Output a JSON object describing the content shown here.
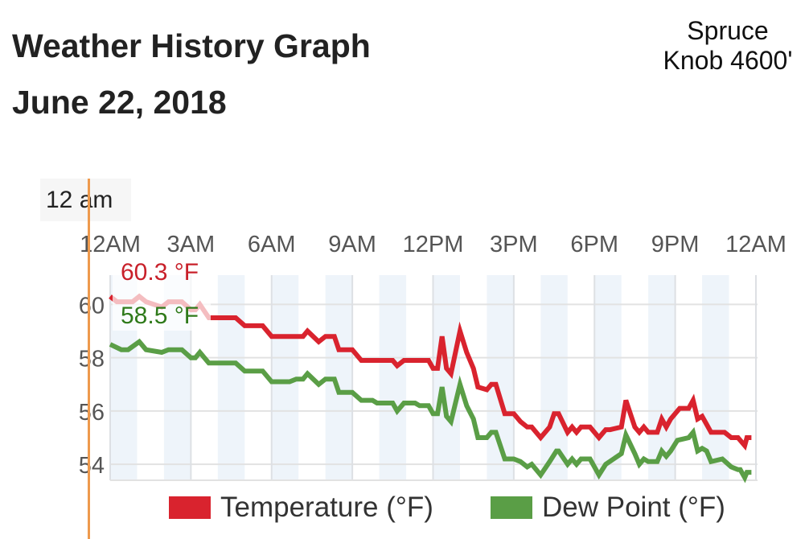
{
  "header": {
    "title_line1": "Weather History Graph",
    "title_line2": "June 22, 2018",
    "station_line1": "Spruce",
    "station_line2": "Knob 4600'"
  },
  "tooltip": {
    "time": "12 am",
    "temperature": "60.3 °F",
    "dew_point": "58.5 °F"
  },
  "colors": {
    "temperature": "#d9232e",
    "dew_point": "#5a9e46",
    "cursor": "#ee9a4d",
    "band": "#eef4fa"
  },
  "chart_data": {
    "type": "line",
    "title": "",
    "xlabel": "",
    "ylabel": "",
    "x_ticks": [
      "12AM",
      "3AM",
      "6AM",
      "9AM",
      "12PM",
      "3PM",
      "6PM",
      "9PM",
      "12AM"
    ],
    "y_ticks": [
      54,
      56,
      58,
      60
    ],
    "ylim": [
      53.4,
      61.1
    ],
    "grid": true,
    "legend_position": "bottom",
    "series": [
      {
        "name": "Temperature (°F)",
        "color": "#d9232e",
        "points": [
          [
            "00:00",
            60.3
          ],
          [
            "00:15",
            60.1
          ],
          [
            "00:50",
            60.1
          ],
          [
            "01:05",
            60.3
          ],
          [
            "01:20",
            60.1
          ],
          [
            "01:55",
            59.9
          ],
          [
            "02:10",
            60.1
          ],
          [
            "02:40",
            60.1
          ],
          [
            "03:00",
            59.8
          ],
          [
            "03:10",
            59.8
          ],
          [
            "03:20",
            60.0
          ],
          [
            "03:40",
            59.5
          ],
          [
            "04:40",
            59.5
          ],
          [
            "05:00",
            59.2
          ],
          [
            "05:40",
            59.2
          ],
          [
            "06:00",
            58.8
          ],
          [
            "07:10",
            58.8
          ],
          [
            "07:20",
            59.0
          ],
          [
            "07:45",
            58.6
          ],
          [
            "08:00",
            58.8
          ],
          [
            "08:20",
            58.8
          ],
          [
            "08:30",
            58.3
          ],
          [
            "09:00",
            58.3
          ],
          [
            "09:20",
            57.9
          ],
          [
            "10:30",
            57.9
          ],
          [
            "10:40",
            57.7
          ],
          [
            "10:55",
            57.9
          ],
          [
            "11:50",
            57.9
          ],
          [
            "12:00",
            57.6
          ],
          [
            "12:10",
            57.6
          ],
          [
            "12:20",
            58.8
          ],
          [
            "12:30",
            57.6
          ],
          [
            "12:40",
            57.4
          ],
          [
            "13:00",
            59.0
          ],
          [
            "13:15",
            58.2
          ],
          [
            "13:30",
            57.6
          ],
          [
            "13:40",
            56.9
          ],
          [
            "14:00",
            56.8
          ],
          [
            "14:10",
            57.0
          ],
          [
            "14:20",
            57.0
          ],
          [
            "14:40",
            55.9
          ],
          [
            "15:00",
            55.9
          ],
          [
            "15:15",
            55.6
          ],
          [
            "15:30",
            55.4
          ],
          [
            "15:40",
            55.4
          ],
          [
            "16:00",
            55.0
          ],
          [
            "16:20",
            55.4
          ],
          [
            "16:30",
            55.9
          ],
          [
            "16:40",
            55.9
          ],
          [
            "17:00",
            55.2
          ],
          [
            "17:10",
            55.4
          ],
          [
            "17:20",
            55.2
          ],
          [
            "17:30",
            55.4
          ],
          [
            "17:50",
            55.4
          ],
          [
            "18:10",
            55.0
          ],
          [
            "18:25",
            55.3
          ],
          [
            "18:35",
            55.3
          ],
          [
            "19:00",
            55.4
          ],
          [
            "19:10",
            56.4
          ],
          [
            "19:30",
            55.4
          ],
          [
            "19:40",
            55.2
          ],
          [
            "19:50",
            55.4
          ],
          [
            "20:00",
            55.2
          ],
          [
            "20:20",
            55.2
          ],
          [
            "20:30",
            55.7
          ],
          [
            "20:40",
            55.4
          ],
          [
            "20:50",
            55.7
          ],
          [
            "21:10",
            56.1
          ],
          [
            "21:30",
            56.1
          ],
          [
            "21:40",
            56.4
          ],
          [
            "21:50",
            55.7
          ],
          [
            "22:00",
            55.8
          ],
          [
            "22:10",
            55.5
          ],
          [
            "22:20",
            55.2
          ],
          [
            "22:50",
            55.2
          ],
          [
            "23:05",
            55.0
          ],
          [
            "23:20",
            55.0
          ],
          [
            "23:35",
            54.7
          ],
          [
            "23:40",
            55.0
          ],
          [
            "23:50",
            55.0
          ]
        ]
      },
      {
        "name": "Dew Point (°F)",
        "color": "#5a9e46",
        "points": [
          [
            "00:00",
            58.5
          ],
          [
            "00:25",
            58.3
          ],
          [
            "00:40",
            58.3
          ],
          [
            "01:05",
            58.6
          ],
          [
            "01:20",
            58.3
          ],
          [
            "01:55",
            58.2
          ],
          [
            "02:10",
            58.3
          ],
          [
            "02:40",
            58.3
          ],
          [
            "03:00",
            58.0
          ],
          [
            "03:10",
            58.0
          ],
          [
            "03:20",
            58.2
          ],
          [
            "03:40",
            57.8
          ],
          [
            "04:40",
            57.8
          ],
          [
            "05:00",
            57.5
          ],
          [
            "05:40",
            57.5
          ],
          [
            "06:00",
            57.1
          ],
          [
            "06:40",
            57.1
          ],
          [
            "06:55",
            57.2
          ],
          [
            "07:10",
            57.2
          ],
          [
            "07:20",
            57.4
          ],
          [
            "07:45",
            57.0
          ],
          [
            "08:00",
            57.2
          ],
          [
            "08:20",
            57.2
          ],
          [
            "08:30",
            56.7
          ],
          [
            "09:00",
            56.7
          ],
          [
            "09:20",
            56.4
          ],
          [
            "09:45",
            56.4
          ],
          [
            "09:55",
            56.3
          ],
          [
            "10:30",
            56.3
          ],
          [
            "10:40",
            56.0
          ],
          [
            "10:55",
            56.3
          ],
          [
            "11:20",
            56.3
          ],
          [
            "11:30",
            56.2
          ],
          [
            "11:50",
            56.2
          ],
          [
            "12:00",
            55.9
          ],
          [
            "12:10",
            55.9
          ],
          [
            "12:20",
            56.9
          ],
          [
            "12:30",
            55.8
          ],
          [
            "12:40",
            55.6
          ],
          [
            "13:00",
            57.0
          ],
          [
            "13:15",
            56.2
          ],
          [
            "13:30",
            55.7
          ],
          [
            "13:40",
            55.0
          ],
          [
            "14:00",
            55.0
          ],
          [
            "14:10",
            55.2
          ],
          [
            "14:20",
            55.2
          ],
          [
            "14:40",
            54.2
          ],
          [
            "15:00",
            54.2
          ],
          [
            "15:15",
            54.1
          ],
          [
            "15:30",
            53.9
          ],
          [
            "15:40",
            54.0
          ],
          [
            "16:00",
            53.6
          ],
          [
            "16:20",
            54.1
          ],
          [
            "16:35",
            54.5
          ],
          [
            "16:40",
            54.5
          ],
          [
            "17:00",
            54.0
          ],
          [
            "17:10",
            54.2
          ],
          [
            "17:20",
            54.0
          ],
          [
            "17:30",
            54.2
          ],
          [
            "17:50",
            54.2
          ],
          [
            "18:10",
            53.6
          ],
          [
            "18:25",
            54.0
          ],
          [
            "19:00",
            54.4
          ],
          [
            "19:10",
            55.1
          ],
          [
            "19:30",
            54.4
          ],
          [
            "19:40",
            54.0
          ],
          [
            "19:50",
            54.2
          ],
          [
            "20:00",
            54.1
          ],
          [
            "20:20",
            54.1
          ],
          [
            "20:30",
            54.5
          ],
          [
            "20:40",
            54.3
          ],
          [
            "20:50",
            54.5
          ],
          [
            "21:05",
            54.9
          ],
          [
            "21:30",
            55.0
          ],
          [
            "21:40",
            55.2
          ],
          [
            "21:50",
            54.5
          ],
          [
            "22:00",
            54.6
          ],
          [
            "22:10",
            54.5
          ],
          [
            "22:20",
            54.1
          ],
          [
            "22:45",
            54.2
          ],
          [
            "23:05",
            53.9
          ],
          [
            "23:20",
            53.8
          ],
          [
            "23:25",
            53.8
          ],
          [
            "23:35",
            53.5
          ],
          [
            "23:40",
            53.7
          ],
          [
            "23:50",
            53.7
          ]
        ]
      }
    ]
  }
}
